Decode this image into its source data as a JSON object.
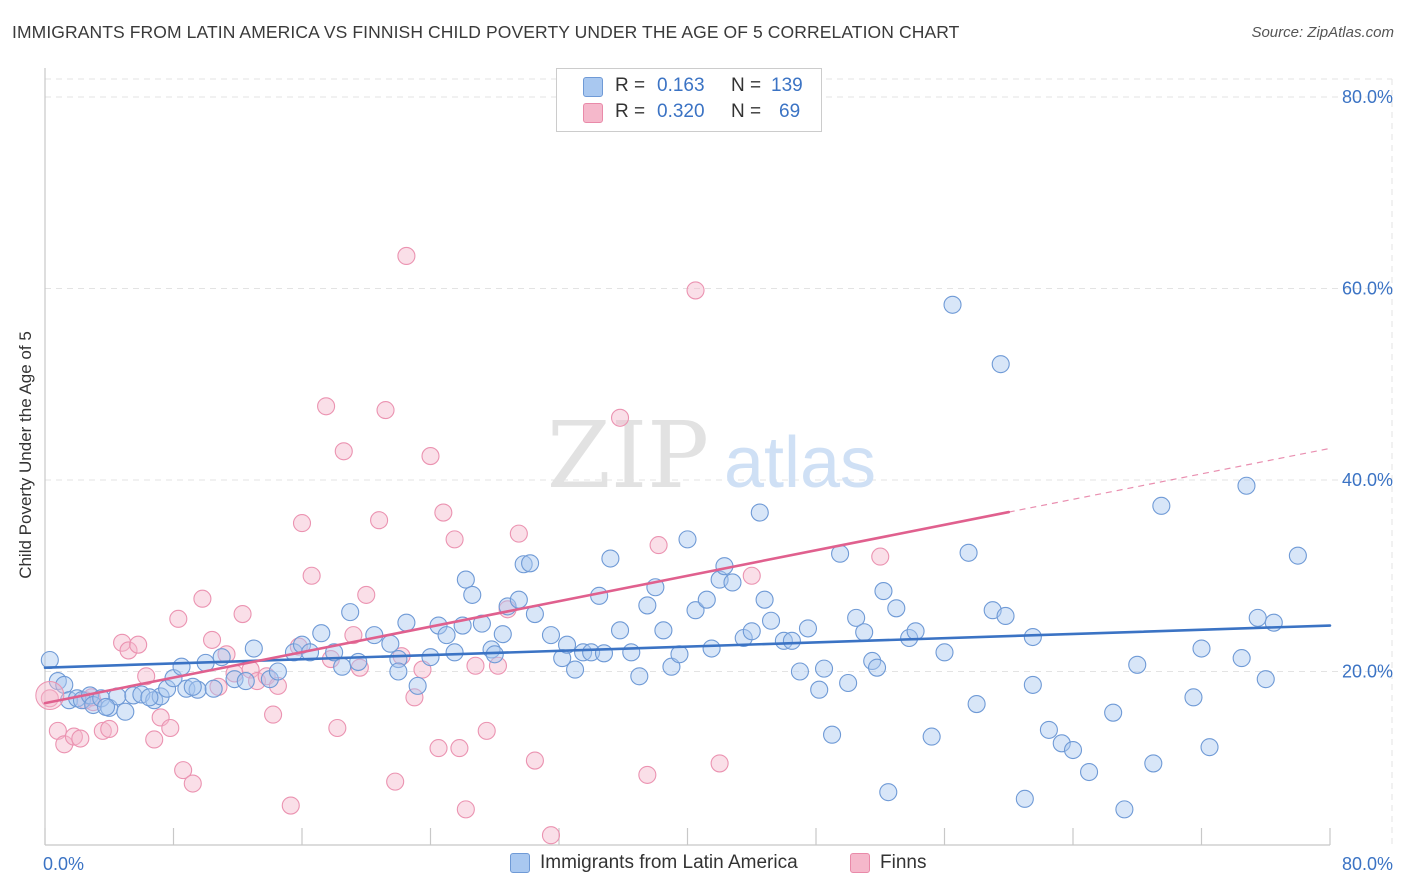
{
  "title": "IMMIGRANTS FROM LATIN AMERICA VS FINNISH CHILD POVERTY UNDER THE AGE OF 5 CORRELATION CHART",
  "source": "Source: ZipAtlas.com",
  "watermark": {
    "zip": "ZIP",
    "atlas": "atlas"
  },
  "legend_stats": [
    {
      "r_label": "R =",
      "r_value": "0.163",
      "n_label": "N =",
      "n_value": "139",
      "color": "#a9c8f0"
    },
    {
      "r_label": "R =",
      "r_value": "0.320",
      "n_label": "N =",
      "n_value": "69",
      "color": "#f5b8cb"
    }
  ],
  "chart_data": {
    "type": "scatter",
    "title": "IMMIGRANTS FROM LATIN AMERICA VS FINNISH CHILD POVERTY UNDER THE AGE OF 5 CORRELATION CHART",
    "xlabel": "",
    "ylabel": "Child Poverty Under the Age of 5",
    "xlim": [
      0,
      80
    ],
    "ylim": [
      0,
      80
    ],
    "x_tick_labels": [
      "0.0%",
      "80.0%"
    ],
    "y_tick_labels": [
      "20.0%",
      "40.0%",
      "60.0%",
      "80.0%"
    ],
    "y_ticks": [
      20,
      40,
      60,
      80
    ],
    "grid": true,
    "legend": "bottom-center",
    "series": [
      {
        "name": "Immigrants from Latin America",
        "color": "#3b73c4",
        "fill": "#a9c8f0",
        "trend": {
          "x0": 0,
          "y0": 20.4,
          "x1": 80,
          "y1": 24.8,
          "dashed_from": null
        },
        "points": [
          [
            0.3,
            21.2
          ],
          [
            0.8,
            19.0
          ],
          [
            1.2,
            18.6
          ],
          [
            1.5,
            17.0
          ],
          [
            2.0,
            17.2
          ],
          [
            2.3,
            17.0
          ],
          [
            2.8,
            17.5
          ],
          [
            3.0,
            16.5
          ],
          [
            3.5,
            17.2
          ],
          [
            4.0,
            16.2
          ],
          [
            4.5,
            17.4
          ],
          [
            5.0,
            15.8
          ],
          [
            5.5,
            17.5
          ],
          [
            6.0,
            17.6
          ],
          [
            6.8,
            17.0
          ],
          [
            7.2,
            17.4
          ],
          [
            7.6,
            18.2
          ],
          [
            8.0,
            19.3
          ],
          [
            8.5,
            20.5
          ],
          [
            8.8,
            18.2
          ],
          [
            9.5,
            18.1
          ],
          [
            10.0,
            20.9
          ],
          [
            10.5,
            18.2
          ],
          [
            11.0,
            21.5
          ],
          [
            11.8,
            19.2
          ],
          [
            12.5,
            19.0
          ],
          [
            13.0,
            22.4
          ],
          [
            14.0,
            19.2
          ],
          [
            14.5,
            20.0
          ],
          [
            15.5,
            22.0
          ],
          [
            16.0,
            22.8
          ],
          [
            16.5,
            22.0
          ],
          [
            17.2,
            24.0
          ],
          [
            18.0,
            22.0
          ],
          [
            18.5,
            20.5
          ],
          [
            19.0,
            26.2
          ],
          [
            19.5,
            21.0
          ],
          [
            20.5,
            23.8
          ],
          [
            21.5,
            22.9
          ],
          [
            22.0,
            21.3
          ],
          [
            22.0,
            20.0
          ],
          [
            22.5,
            25.1
          ],
          [
            23.2,
            18.5
          ],
          [
            24.0,
            21.5
          ],
          [
            24.5,
            24.8
          ],
          [
            25.0,
            23.8
          ],
          [
            25.5,
            22.0
          ],
          [
            26.0,
            24.8
          ],
          [
            26.2,
            29.6
          ],
          [
            26.6,
            28.0
          ],
          [
            27.2,
            25.0
          ],
          [
            27.8,
            22.3
          ],
          [
            28.0,
            21.8
          ],
          [
            28.5,
            23.9
          ],
          [
            28.8,
            26.8
          ],
          [
            29.5,
            27.5
          ],
          [
            29.8,
            31.2
          ],
          [
            30.2,
            31.3
          ],
          [
            30.5,
            26.0
          ],
          [
            31.5,
            23.8
          ],
          [
            32.2,
            21.4
          ],
          [
            32.5,
            22.8
          ],
          [
            33.0,
            20.2
          ],
          [
            33.5,
            22.0
          ],
          [
            34.0,
            22.0
          ],
          [
            34.5,
            27.9
          ],
          [
            34.8,
            21.9
          ],
          [
            35.2,
            31.8
          ],
          [
            35.8,
            24.3
          ],
          [
            36.5,
            22.0
          ],
          [
            37.0,
            19.5
          ],
          [
            37.5,
            26.9
          ],
          [
            38.0,
            28.8
          ],
          [
            38.5,
            24.3
          ],
          [
            39.0,
            20.5
          ],
          [
            39.5,
            21.8
          ],
          [
            40.0,
            33.8
          ],
          [
            40.5,
            26.4
          ],
          [
            41.2,
            27.5
          ],
          [
            41.5,
            22.4
          ],
          [
            42.0,
            29.6
          ],
          [
            42.3,
            31.0
          ],
          [
            42.8,
            29.3
          ],
          [
            43.5,
            23.5
          ],
          [
            44.0,
            24.2
          ],
          [
            44.5,
            36.6
          ],
          [
            44.8,
            27.5
          ],
          [
            45.2,
            25.3
          ],
          [
            46.0,
            23.2
          ],
          [
            46.5,
            23.2
          ],
          [
            47.0,
            20.0
          ],
          [
            47.5,
            24.5
          ],
          [
            48.2,
            18.1
          ],
          [
            48.5,
            20.3
          ],
          [
            49.0,
            13.4
          ],
          [
            49.5,
            32.3
          ],
          [
            50.0,
            18.8
          ],
          [
            50.5,
            25.6
          ],
          [
            51.0,
            24.1
          ],
          [
            51.5,
            21.1
          ],
          [
            51.8,
            20.4
          ],
          [
            52.2,
            28.4
          ],
          [
            52.5,
            7.4
          ],
          [
            53.0,
            26.6
          ],
          [
            53.8,
            23.5
          ],
          [
            54.2,
            24.2
          ],
          [
            55.2,
            13.2
          ],
          [
            56.0,
            22.0
          ],
          [
            56.5,
            58.3
          ],
          [
            57.5,
            32.4
          ],
          [
            58.0,
            16.6
          ],
          [
            59.0,
            26.4
          ],
          [
            59.5,
            52.1
          ],
          [
            59.8,
            25.8
          ],
          [
            61.0,
            6.7
          ],
          [
            61.5,
            18.6
          ],
          [
            61.5,
            23.6
          ],
          [
            62.5,
            13.9
          ],
          [
            63.3,
            12.5
          ],
          [
            64.0,
            11.8
          ],
          [
            65.0,
            9.5
          ],
          [
            66.5,
            15.7
          ],
          [
            67.2,
            5.6
          ],
          [
            68.0,
            20.7
          ],
          [
            69.0,
            10.4
          ],
          [
            69.5,
            37.3
          ],
          [
            71.5,
            17.3
          ],
          [
            72.0,
            22.4
          ],
          [
            72.5,
            12.1
          ],
          [
            74.5,
            21.4
          ],
          [
            74.8,
            39.4
          ],
          [
            75.5,
            25.6
          ],
          [
            76.0,
            19.2
          ],
          [
            76.5,
            25.1
          ],
          [
            78.0,
            32.1
          ],
          [
            3.8,
            16.3
          ],
          [
            6.5,
            17.3
          ],
          [
            9.2,
            18.4
          ]
        ]
      },
      {
        "name": "Finns",
        "color": "#e0608e",
        "fill": "#f5b8cb",
        "trend": {
          "x0": 0,
          "y0": 16.7,
          "x1": 80,
          "y1": 43.3,
          "dashed_from": 60
        },
        "points": [
          [
            0.3,
            17.2
          ],
          [
            0.8,
            13.8
          ],
          [
            1.2,
            12.4
          ],
          [
            1.8,
            13.2
          ],
          [
            2.2,
            13.0
          ],
          [
            2.5,
            17.0
          ],
          [
            3.0,
            16.8
          ],
          [
            3.6,
            13.8
          ],
          [
            4.0,
            14.0
          ],
          [
            4.8,
            23.0
          ],
          [
            5.2,
            22.2
          ],
          [
            5.8,
            22.8
          ],
          [
            6.3,
            19.5
          ],
          [
            6.8,
            12.9
          ],
          [
            7.2,
            15.2
          ],
          [
            7.8,
            14.1
          ],
          [
            8.3,
            25.5
          ],
          [
            8.6,
            9.7
          ],
          [
            9.2,
            8.3
          ],
          [
            9.8,
            27.6
          ],
          [
            10.4,
            23.3
          ],
          [
            10.8,
            18.4
          ],
          [
            11.3,
            21.8
          ],
          [
            11.8,
            19.8
          ],
          [
            12.3,
            26.0
          ],
          [
            12.8,
            20.2
          ],
          [
            13.2,
            19.0
          ],
          [
            13.8,
            19.5
          ],
          [
            14.2,
            15.5
          ],
          [
            14.5,
            18.5
          ],
          [
            15.3,
            6.0
          ],
          [
            15.8,
            22.6
          ],
          [
            16.0,
            35.5
          ],
          [
            16.6,
            30.0
          ],
          [
            17.5,
            47.7
          ],
          [
            17.8,
            21.3
          ],
          [
            18.2,
            14.1
          ],
          [
            18.6,
            43.0
          ],
          [
            19.2,
            23.8
          ],
          [
            19.6,
            20.4
          ],
          [
            20.0,
            28.0
          ],
          [
            20.8,
            35.8
          ],
          [
            21.2,
            47.3
          ],
          [
            21.8,
            8.5
          ],
          [
            22.2,
            21.6
          ],
          [
            22.5,
            63.4
          ],
          [
            23.0,
            17.3
          ],
          [
            23.5,
            20.2
          ],
          [
            24.0,
            42.5
          ],
          [
            24.5,
            12.0
          ],
          [
            24.8,
            36.6
          ],
          [
            25.5,
            33.8
          ],
          [
            25.8,
            12.0
          ],
          [
            26.2,
            5.6
          ],
          [
            26.8,
            20.6
          ],
          [
            27.5,
            13.8
          ],
          [
            28.2,
            20.6
          ],
          [
            28.8,
            26.5
          ],
          [
            29.5,
            34.4
          ],
          [
            30.5,
            10.7
          ],
          [
            31.5,
            2.9
          ],
          [
            35.8,
            46.5
          ],
          [
            37.5,
            9.2
          ],
          [
            38.2,
            33.2
          ],
          [
            40.5,
            59.8
          ],
          [
            42.0,
            10.4
          ],
          [
            44.0,
            30.0
          ],
          [
            52.0,
            32.0
          ],
          [
            2.9,
            17.3
          ]
        ]
      }
    ]
  }
}
